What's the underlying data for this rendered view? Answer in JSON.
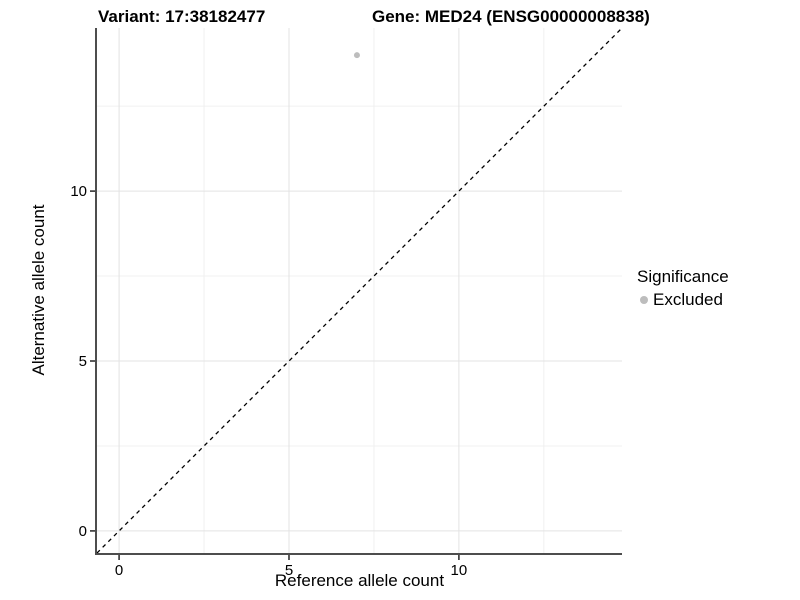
{
  "chart_data": {
    "type": "scatter",
    "title_left": "Variant: 17:38182477",
    "title_right": "Gene: MED24 (ENSG00000008838)",
    "xlabel": "Reference allele count",
    "ylabel": "Alternative allele count",
    "xlim": [
      -0.65,
      14.8
    ],
    "ylim": [
      -0.65,
      14.8
    ],
    "x_major_ticks": [
      0,
      5,
      10
    ],
    "y_major_ticks": [
      0,
      5,
      10
    ],
    "x_minor_ticks": [
      2.5,
      7.5,
      12.5
    ],
    "y_minor_ticks": [
      2.5,
      7.5,
      12.5
    ],
    "grid": true,
    "series": [
      {
        "name": "Excluded",
        "marker": "circle",
        "color": "#bdbdbd",
        "points": [
          {
            "x": 7,
            "y": 14
          }
        ]
      }
    ],
    "reference_line": {
      "kind": "identity",
      "slope": 1,
      "intercept": 0,
      "style": "dashed",
      "color": "#000000"
    },
    "legend": {
      "title": "Significance",
      "position": "right",
      "items": [
        {
          "label": "Excluded",
          "color": "#bdbdbd",
          "marker": "circle"
        }
      ]
    },
    "colors": {
      "background": "#ffffff",
      "grid_major": "#e3e3e3",
      "grid_minor": "#f0f0f0",
      "axis_line": "#4d4d4d",
      "tick_mark": "#333333",
      "tick_text": "#000000",
      "point": "#bdbdbd",
      "reference_line": "#000000"
    }
  }
}
